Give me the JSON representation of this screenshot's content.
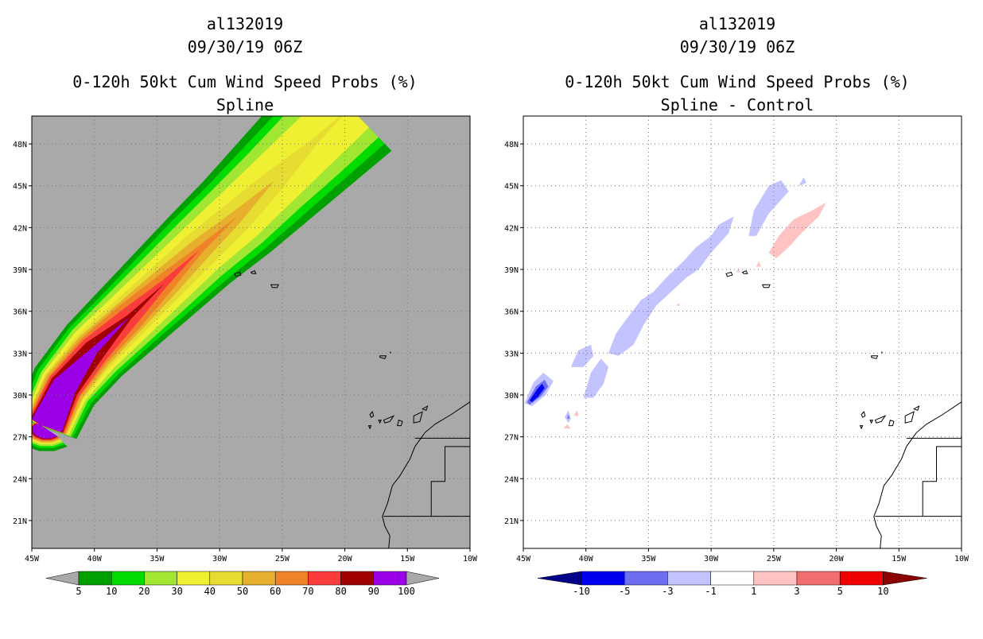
{
  "chart_data": [
    {
      "type": "contour-map",
      "title": [
        "al132019",
        "09/30/19 06Z",
        "0-120h 50kt Cum Wind Speed Probs (%)",
        "Spline"
      ],
      "xlabel": "",
      "ylabel": "",
      "xlim": [
        -45,
        -10
      ],
      "ylim": [
        19,
        50
      ],
      "x_ticks": [
        -45,
        -40,
        -35,
        -30,
        -25,
        -20,
        -15,
        -10
      ],
      "x_tick_labels": [
        "45W",
        "40W",
        "35W",
        "30W",
        "25W",
        "20W",
        "15W",
        "10W"
      ],
      "y_ticks": [
        21,
        24,
        27,
        30,
        33,
        36,
        39,
        42,
        45,
        48
      ],
      "y_tick_labels": [
        "21N",
        "24N",
        "27N",
        "30N",
        "33N",
        "36N",
        "39N",
        "42N",
        "45N",
        "48N"
      ],
      "background_color": "#a9a9a9",
      "colorbar": {
        "levels": [
          "5",
          "10",
          "20",
          "30",
          "40",
          "50",
          "60",
          "70",
          "80",
          "90",
          "100"
        ],
        "colors": [
          "#00a000",
          "#00dc00",
          "#a0e632",
          "#f0f032",
          "#e6dc32",
          "#e6af2d",
          "#f08228",
          "#fa3c3c",
          "#a00000",
          "#9b00e6"
        ],
        "low_arrow_color": "#a9a9a9",
        "high_arrow_color": "#a9a9a9"
      },
      "track": {
        "lon": [
          -43.8,
          -42.4,
          -40.0,
          -37.2,
          -34.4,
          -31.6,
          -28.6,
          -25.6,
          -22.6,
          -19.6
        ],
        "lat": [
          27.8,
          30.6,
          33.2,
          35.6,
          38.0,
          40.4,
          42.8,
          45.4,
          48.0,
          50.6
        ]
      },
      "bands": [
        {
          "value": 5,
          "halfwidth": [
            2.6,
            2.8,
            3.0,
            3.2,
            3.4,
            3.6,
            3.9,
            4.2,
            4.5,
            4.8
          ]
        },
        {
          "value": 10,
          "halfwidth": [
            2.3,
            2.5,
            2.7,
            2.8,
            3.0,
            3.2,
            3.4,
            3.6,
            3.8,
            4.0
          ]
        },
        {
          "value": 20,
          "halfwidth": [
            2.1,
            2.2,
            2.4,
            2.5,
            2.6,
            2.7,
            2.9,
            3.0,
            3.2,
            3.3
          ]
        },
        {
          "value": 30,
          "halfwidth": [
            1.9,
            2.0,
            2.1,
            2.1,
            2.1,
            2.1,
            2.2,
            2.2,
            2.2,
            2.2
          ]
        },
        {
          "value": 40,
          "halfwidth": [
            1.8,
            1.8,
            1.8,
            1.7,
            1.6,
            1.5,
            1.3,
            0.9,
            0.3,
            0.0
          ]
        },
        {
          "value": 50,
          "halfwidth": [
            1.7,
            1.7,
            1.6,
            1.4,
            1.2,
            0.9,
            0.5,
            0.0,
            0.0,
            0.0
          ]
        },
        {
          "value": 60,
          "halfwidth": [
            1.6,
            1.5,
            1.4,
            1.2,
            0.8,
            0.3,
            0.0,
            0.0,
            0.0,
            0.0
          ]
        },
        {
          "value": 70,
          "halfwidth": [
            1.5,
            1.4,
            1.2,
            0.8,
            0.3,
            0.0,
            0.0,
            0.0,
            0.0,
            0.0
          ]
        },
        {
          "value": 80,
          "halfwidth": [
            1.4,
            1.2,
            0.9,
            0.2,
            0.0,
            0.0,
            0.0,
            0.0,
            0.0,
            0.0
          ]
        },
        {
          "value": 90,
          "halfwidth": [
            1.3,
            1.0,
            0.3,
            0.0,
            0.0,
            0.0,
            0.0,
            0.0,
            0.0,
            0.0
          ]
        }
      ]
    },
    {
      "type": "contour-map",
      "title": [
        "al132019",
        "09/30/19 06Z",
        "0-120h 50kt Cum Wind Speed Probs (%)",
        "Spline - Control"
      ],
      "xlabel": "",
      "ylabel": "",
      "xlim": [
        -45,
        -10
      ],
      "ylim": [
        19,
        50
      ],
      "x_ticks": [
        -45,
        -40,
        -35,
        -30,
        -25,
        -20,
        -15,
        -10
      ],
      "x_tick_labels": [
        "45W",
        "40W",
        "35W",
        "30W",
        "25W",
        "20W",
        "15W",
        "10W"
      ],
      "y_ticks": [
        21,
        24,
        27,
        30,
        33,
        36,
        39,
        42,
        45,
        48
      ],
      "y_tick_labels": [
        "21N",
        "24N",
        "27N",
        "30N",
        "33N",
        "36N",
        "39N",
        "42N",
        "45N",
        "48N"
      ],
      "background_color": "#ffffff",
      "colorbar": {
        "levels": [
          "-10",
          "-5",
          "-3",
          "-1",
          "1",
          "3",
          "5",
          "10"
        ],
        "colors": [
          "#0000f0",
          "#6e6ef0",
          "#c3c3ff",
          "#ffffff",
          "#ffc3c3",
          "#f06e6e",
          "#f00000"
        ],
        "low_arrow_color": "#00008b",
        "high_arrow_color": "#8b0000"
      },
      "blobs": [
        {
          "value": -3,
          "color": "#c3c3ff",
          "points": [
            [
              -44.9,
              29.4
            ],
            [
              -44.2,
              30.9
            ],
            [
              -43.4,
              31.6
            ],
            [
              -42.6,
              31.0
            ],
            [
              -43.2,
              30.0
            ],
            [
              -44.3,
              29.2
            ]
          ]
        },
        {
          "value": -5,
          "color": "#6e6ef0",
          "points": [
            [
              -44.7,
              29.5
            ],
            [
              -44.0,
              30.6
            ],
            [
              -43.3,
              31.1
            ],
            [
              -43.0,
              30.6
            ],
            [
              -43.6,
              29.9
            ],
            [
              -44.5,
              29.3
            ]
          ]
        },
        {
          "value": -10,
          "color": "#0000f0",
          "points": [
            [
              -44.5,
              29.6
            ],
            [
              -43.9,
              30.4
            ],
            [
              -43.5,
              30.8
            ],
            [
              -43.3,
              30.5
            ],
            [
              -43.8,
              29.9
            ],
            [
              -44.3,
              29.5
            ]
          ]
        },
        {
          "value": -1,
          "color": "#c3c3ff",
          "points": [
            [
              -41.7,
              28.4
            ],
            [
              -41.4,
              28.9
            ],
            [
              -41.2,
              28.3
            ],
            [
              -41.4,
              28.0
            ]
          ]
        },
        {
          "value": -3,
          "color": "#6e6ef0",
          "points": [
            [
              -41.5,
              28.3
            ],
            [
              -41.4,
              28.6
            ],
            [
              -41.3,
              28.3
            ]
          ]
        },
        {
          "value": -1,
          "color": "#c3c3ff",
          "points": [
            [
              -40.2,
              29.8
            ],
            [
              -39.6,
              31.6
            ],
            [
              -38.8,
              32.6
            ],
            [
              -38.2,
              32.0
            ],
            [
              -38.6,
              30.8
            ],
            [
              -39.4,
              29.8
            ]
          ]
        },
        {
          "value": -1,
          "color": "#c3c3ff",
          "points": [
            [
              -41.2,
              32.0
            ],
            [
              -40.6,
              33.2
            ],
            [
              -39.6,
              33.6
            ],
            [
              -39.4,
              32.8
            ],
            [
              -40.2,
              32.0
            ]
          ]
        },
        {
          "value": -1,
          "color": "#c3c3ff",
          "points": [
            [
              -38.2,
              33.0
            ],
            [
              -37.6,
              34.4
            ],
            [
              -36.8,
              35.4
            ],
            [
              -35.6,
              36.8
            ],
            [
              -34.6,
              37.4
            ],
            [
              -33.6,
              38.4
            ],
            [
              -32.2,
              39.6
            ],
            [
              -31.2,
              40.6
            ],
            [
              -30.0,
              41.4
            ],
            [
              -29.4,
              42.2
            ],
            [
              -28.2,
              42.8
            ],
            [
              -28.6,
              41.6
            ],
            [
              -30.0,
              40.2
            ],
            [
              -31.0,
              39.0
            ],
            [
              -32.0,
              38.4
            ],
            [
              -33.2,
              37.4
            ],
            [
              -34.4,
              36.4
            ],
            [
              -35.4,
              35.0
            ],
            [
              -36.2,
              33.6
            ],
            [
              -37.4,
              32.8
            ]
          ]
        },
        {
          "value": -1,
          "color": "#c3c3ff",
          "points": [
            [
              -27.0,
              41.4
            ],
            [
              -26.6,
              43.2
            ],
            [
              -25.4,
              45.0
            ],
            [
              -24.4,
              45.4
            ],
            [
              -23.8,
              44.6
            ],
            [
              -25.4,
              43.0
            ],
            [
              -26.4,
              41.4
            ]
          ]
        },
        {
          "value": -1,
          "color": "#c3c3ff",
          "points": [
            [
              -23.0,
              45.0
            ],
            [
              -22.6,
              45.6
            ],
            [
              -22.4,
              45.2
            ]
          ]
        },
        {
          "value": 1,
          "color": "#ffc3c3",
          "points": [
            [
              -25.4,
              40.2
            ],
            [
              -24.6,
              41.4
            ],
            [
              -23.4,
              42.6
            ],
            [
              -22.0,
              43.2
            ],
            [
              -20.8,
              43.8
            ],
            [
              -21.4,
              42.8
            ],
            [
              -22.8,
              41.6
            ],
            [
              -23.8,
              40.6
            ],
            [
              -24.8,
              39.8
            ]
          ]
        },
        {
          "value": 1,
          "color": "#ffc3c3",
          "points": [
            [
              -41.8,
              27.6
            ],
            [
              -41.5,
              27.9
            ],
            [
              -41.2,
              27.6
            ]
          ]
        },
        {
          "value": 1,
          "color": "#ffc3c3",
          "points": [
            [
              -41.0,
              28.5
            ],
            [
              -40.7,
              28.9
            ],
            [
              -40.6,
              28.5
            ]
          ]
        },
        {
          "value": 1,
          "color": "#ffc3c3",
          "points": [
            [
              -26.4,
              39.2
            ],
            [
              -26.2,
              39.6
            ],
            [
              -26.0,
              39.2
            ]
          ]
        },
        {
          "value": 1,
          "color": "#ffc3c3",
          "points": [
            [
              -28.0,
              38.8
            ],
            [
              -27.8,
              39.1
            ],
            [
              -27.7,
              38.8
            ]
          ]
        },
        {
          "value": 1,
          "color": "#ffc3c3",
          "points": [
            [
              -32.8,
              36.4
            ],
            [
              -32.6,
              36.6
            ],
            [
              -32.5,
              36.4
            ]
          ]
        }
      ]
    }
  ]
}
